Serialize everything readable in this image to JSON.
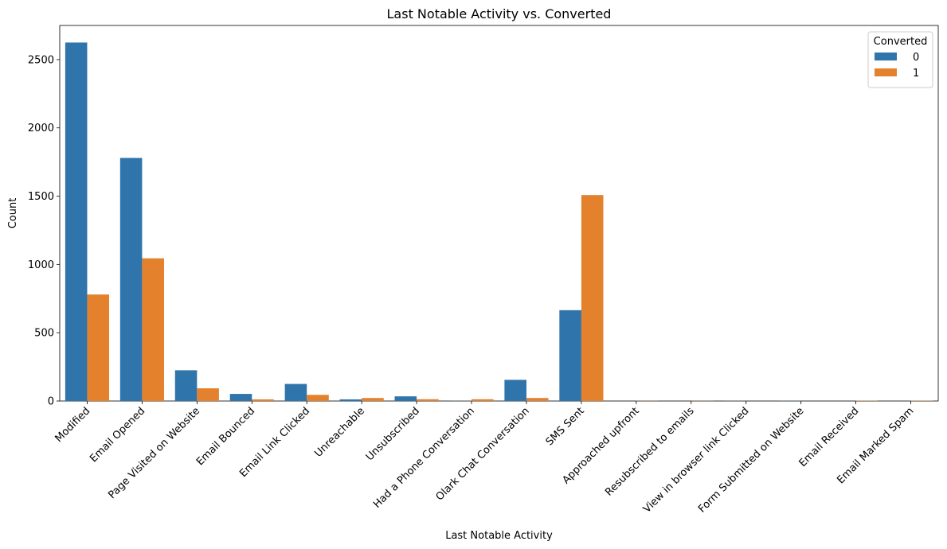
{
  "chart_data": {
    "type": "bar",
    "title": "Last Notable Activity vs. Converted",
    "xlabel": "Last Notable Activity",
    "ylabel": "Count",
    "ylim": [
      0,
      2750
    ],
    "yticks": [
      0,
      500,
      1000,
      1500,
      2000,
      2500
    ],
    "categories": [
      "Modified",
      "Email Opened",
      "Page Visited on Website",
      "Email Bounced",
      "Email Link Clicked",
      "Unreachable",
      "Unsubscribed",
      "Had a Phone Conversation",
      "Olark Chat Conversation",
      "SMS Sent",
      "Approached upfront",
      "Resubscribed to emails",
      "View in browser link Clicked",
      "Form Submitted on Website",
      "Email Received",
      "Email Marked Spam"
    ],
    "legend": {
      "title": "Converted",
      "position": "top-right"
    },
    "series": [
      {
        "name": "0",
        "color": "#2f74ab",
        "values": [
          2625,
          1780,
          225,
          52,
          125,
          12,
          34,
          1,
          155,
          665,
          0,
          0,
          1,
          1,
          0,
          0
        ]
      },
      {
        "name": "1",
        "color": "#e3812d",
        "values": [
          780,
          1045,
          93,
          12,
          45,
          22,
          13,
          13,
          22,
          1508,
          1,
          1,
          0,
          0,
          2,
          2
        ]
      }
    ],
    "grid": false
  }
}
